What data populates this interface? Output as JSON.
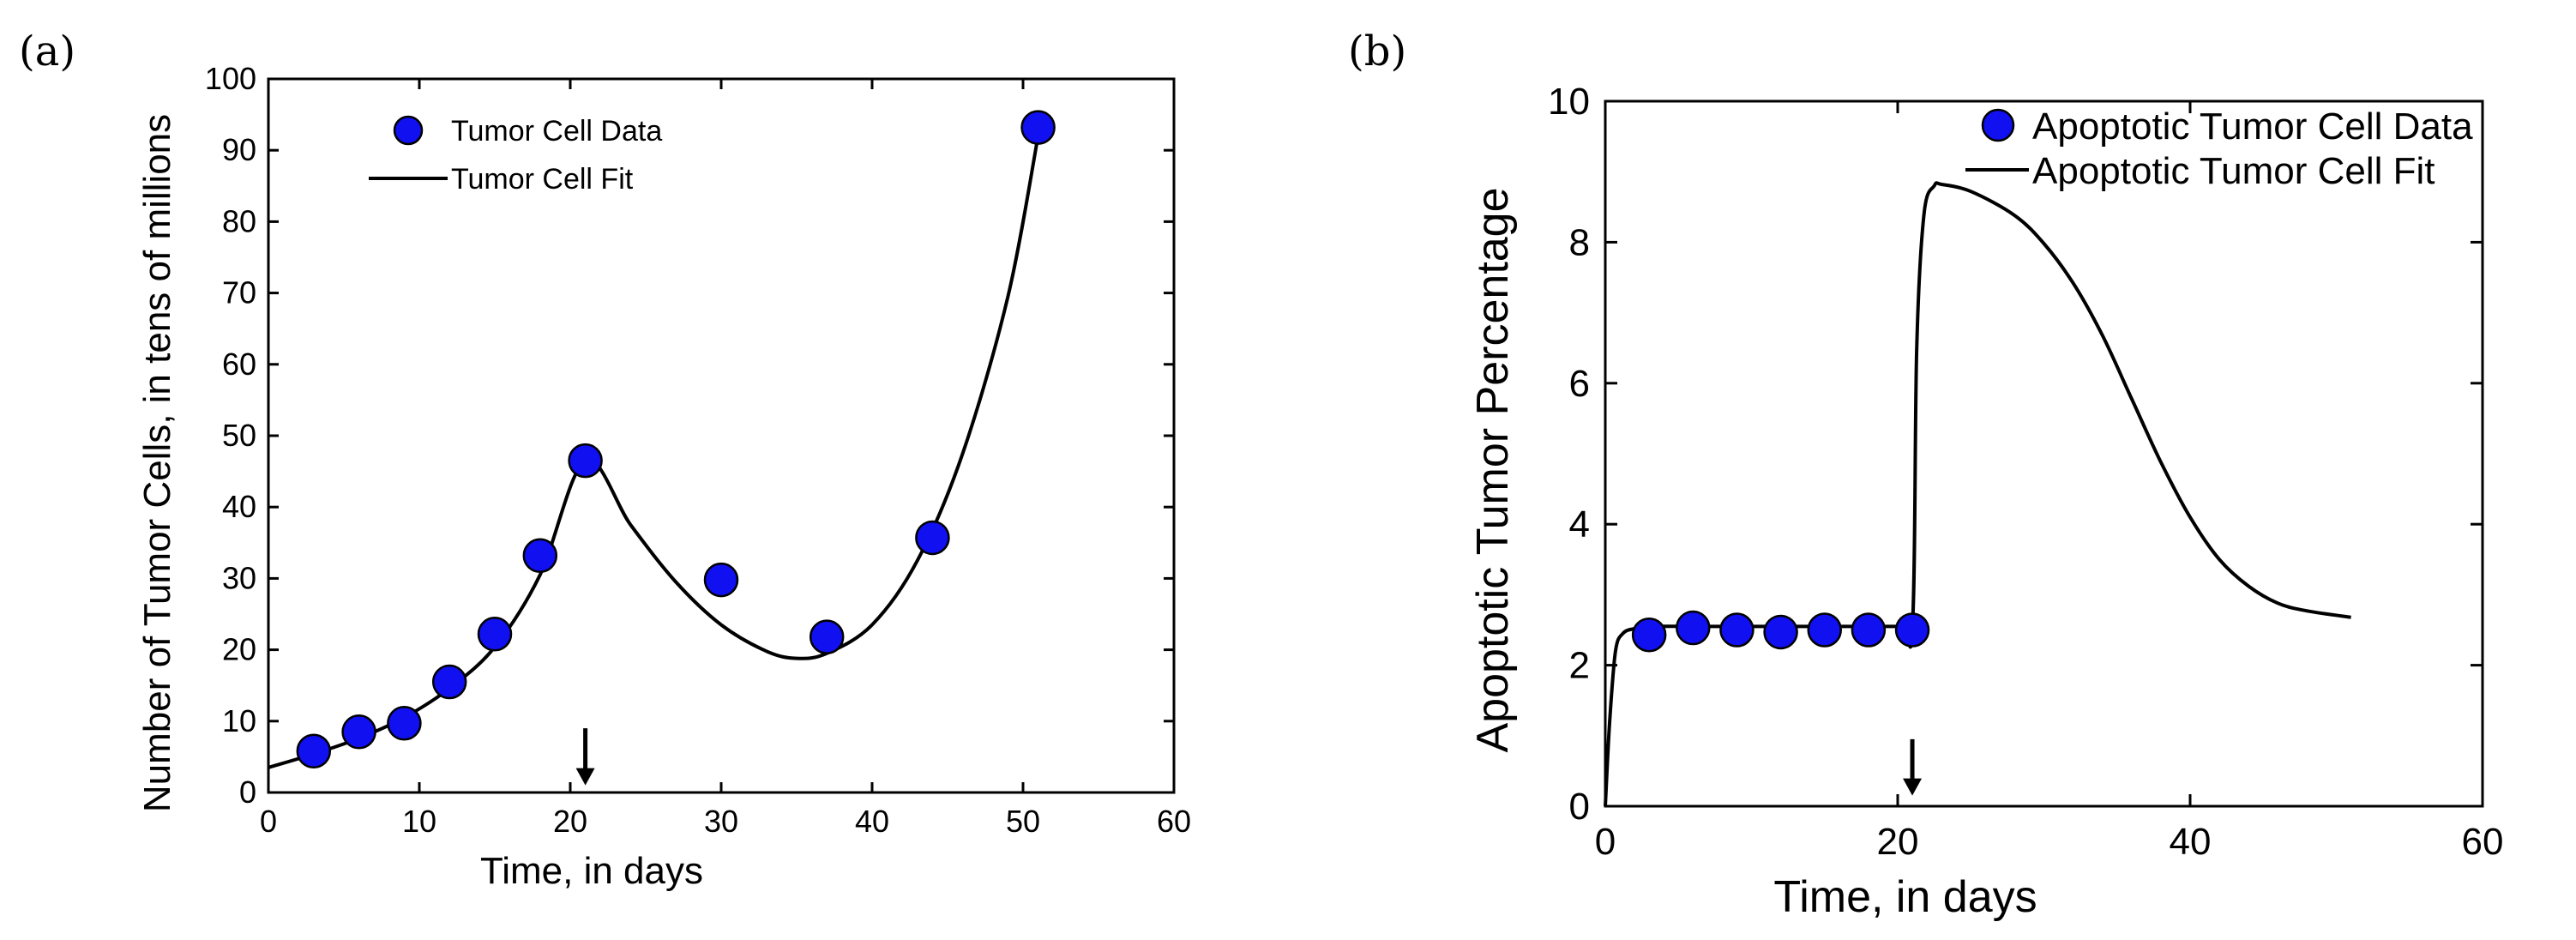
{
  "chart_data": [
    {
      "panel_label": "(a)",
      "type": "scatter",
      "title": "",
      "xlabel": "Time, in days",
      "ylabel": "Number of Tumor Cells, in tens of millions",
      "xlim": [
        0,
        60
      ],
      "ylim": [
        0,
        100
      ],
      "xticks": [
        "0",
        "10",
        "20",
        "30",
        "40",
        "50",
        "60"
      ],
      "yticks": [
        "0",
        "10",
        "20",
        "30",
        "40",
        "50",
        "60",
        "70",
        "80",
        "90",
        "100"
      ],
      "legend": {
        "data_label": "Tumor Cell Data",
        "fit_label": "Tumor Cell Fit",
        "placement": "top-left"
      },
      "series": [
        {
          "name": "Tumor Cell Data",
          "kind": "points",
          "x": [
            3,
            6,
            9,
            12,
            15,
            18,
            21,
            30,
            37,
            44,
            51
          ],
          "y": [
            5.8,
            8.5,
            9.7,
            15.5,
            22.2,
            33.2,
            46.5,
            29.8,
            21.8,
            35.7,
            93.2
          ]
        },
        {
          "name": "Tumor Cell Fit",
          "kind": "line",
          "x": [
            0,
            3,
            6,
            9,
            12,
            15,
            18,
            21,
            24,
            27,
            30,
            33,
            35,
            37,
            40,
            43,
            46,
            49,
            51
          ],
          "y": [
            3.5,
            5.4,
            7.6,
            10.5,
            14.6,
            20.4,
            30.5,
            46.5,
            37.5,
            29.5,
            23.5,
            19.8,
            18.8,
            19.5,
            23.5,
            32.5,
            47.5,
            69.5,
            92.0
          ]
        }
      ],
      "annotations": [
        {
          "type": "arrow-down",
          "x": 21,
          "y_from": 9,
          "y_to": 1
        }
      ]
    },
    {
      "panel_label": "(b)",
      "type": "scatter",
      "title": "",
      "xlabel": "Time, in days",
      "ylabel": "Apoptotic Tumor Percentage",
      "xlim": [
        0,
        60
      ],
      "ylim": [
        0,
        10
      ],
      "xticks": [
        "0",
        "20",
        "40",
        "60"
      ],
      "yticks": [
        "0",
        "2",
        "4",
        "6",
        "8",
        "10"
      ],
      "legend": {
        "data_label": "Apoptotic Tumor Cell Data",
        "fit_label": "Apoptotic Tumor Cell Fit",
        "placement": "top-right"
      },
      "series": [
        {
          "name": "Apoptotic Tumor Cell Data",
          "kind": "points",
          "x": [
            3,
            6,
            9,
            12,
            15,
            18,
            21
          ],
          "y": [
            2.43,
            2.53,
            2.5,
            2.47,
            2.5,
            2.5,
            2.5
          ]
        },
        {
          "name": "Apoptotic Tumor Cell Fit",
          "kind": "line",
          "x": [
            0,
            0.3,
            0.7,
            1.2,
            2,
            3,
            6,
            10,
            15,
            20,
            21,
            21.3,
            21.8,
            22.5,
            23,
            25,
            28,
            30,
            32,
            34,
            36,
            38,
            40,
            42,
            44,
            46,
            48,
            51
          ],
          "y": [
            0,
            1.2,
            2.2,
            2.45,
            2.52,
            2.55,
            2.55,
            2.55,
            2.55,
            2.55,
            2.55,
            6.5,
            8.4,
            8.8,
            8.82,
            8.72,
            8.38,
            7.98,
            7.42,
            6.68,
            5.78,
            4.88,
            4.1,
            3.5,
            3.12,
            2.88,
            2.77,
            2.68
          ]
        }
      ],
      "annotations": [
        {
          "type": "arrow-down",
          "x": 21,
          "y_from": 0.95,
          "y_to": 0.15
        }
      ]
    }
  ]
}
